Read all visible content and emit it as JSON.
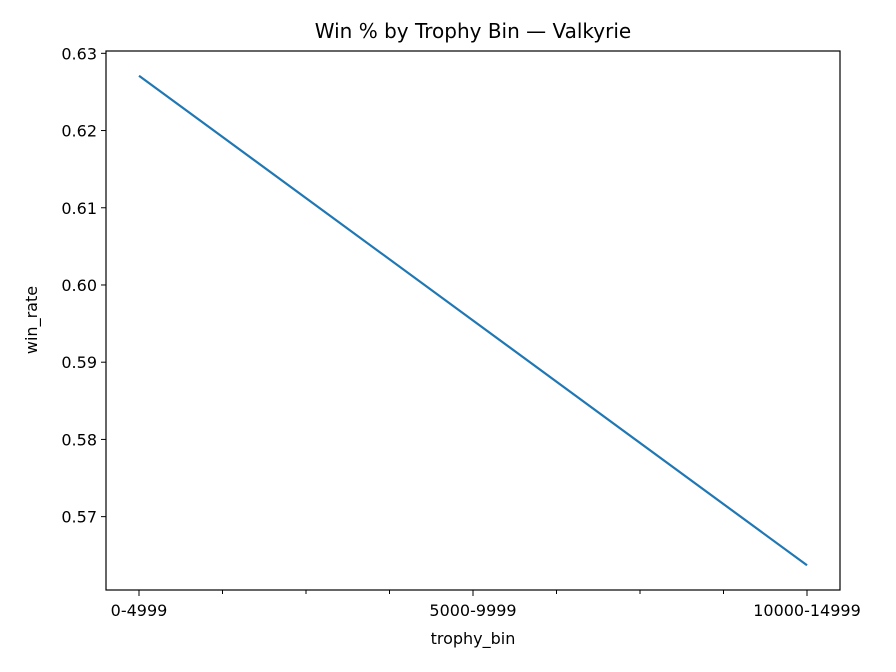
{
  "chart_data": {
    "type": "line",
    "title": "Win % by Trophy Bin — Valkyrie",
    "xlabel": "trophy_bin",
    "ylabel": "win_rate",
    "categories": [
      "0-4999",
      "5000-9999",
      "10000-14999"
    ],
    "series": [
      {
        "values": [
          0.6271,
          0.5954,
          0.5637
        ],
        "color": "#1f77b4"
      }
    ],
    "ylim": [
      0.5605,
      0.6303
    ],
    "yticks": [
      0.57,
      0.58,
      0.59,
      0.6,
      0.61,
      0.62,
      0.63
    ],
    "ytick_labels": [
      "0.57",
      "0.58",
      "0.59",
      "0.60",
      "0.61",
      "0.62",
      "0.63"
    ],
    "x_minor_ticks_per_gap": 3,
    "grid": false,
    "legend": "none"
  }
}
